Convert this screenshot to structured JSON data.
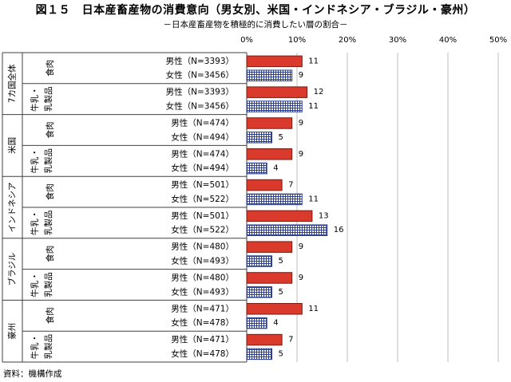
{
  "title": "図１５　日本産畜産物の消費意向（男女別、米国・インドネシア・ブラジル・豪州）",
  "subtitle": "－日本産畜産物を積極的に消費したい層の割合－",
  "source": "資料：機構作成",
  "colors": {
    "male": "#d93a2b",
    "female": "#2c3f8f",
    "grid": "#bfbfbf",
    "frame": "#404040"
  },
  "chart_data": {
    "type": "bar",
    "orientation": "horizontal",
    "xlim": [
      0,
      50
    ],
    "x_ticks": [
      "0%",
      "10%",
      "20%",
      "30%",
      "40%",
      "50%"
    ],
    "grid": true,
    "series": [
      {
        "name": "男性",
        "pattern": "solid-red"
      },
      {
        "name": "女性",
        "pattern": "blue-grid"
      }
    ],
    "groups": [
      {
        "country": "7カ国全体",
        "subgroups": [
          {
            "product": "食肉",
            "rows": [
              {
                "label": "男性（N=3393）",
                "value": 11,
                "series": "男性"
              },
              {
                "label": "女性（N=3456）",
                "value": 9,
                "series": "女性"
              }
            ]
          },
          {
            "product": "牛乳・乳製品",
            "rows": [
              {
                "label": "男性（N=3393）",
                "value": 12,
                "series": "男性"
              },
              {
                "label": "女性（N=3456）",
                "value": 11,
                "series": "女性"
              }
            ]
          }
        ]
      },
      {
        "country": "米国",
        "subgroups": [
          {
            "product": "食肉",
            "rows": [
              {
                "label": "男性（N=474）",
                "value": 9,
                "series": "男性"
              },
              {
                "label": "女性（N=494）",
                "value": 5,
                "series": "女性"
              }
            ]
          },
          {
            "product": "牛乳・乳製品",
            "rows": [
              {
                "label": "男性（N=474）",
                "value": 9,
                "series": "男性"
              },
              {
                "label": "女性（N=494）",
                "value": 4,
                "series": "女性"
              }
            ]
          }
        ]
      },
      {
        "country": "インドネシア",
        "subgroups": [
          {
            "product": "食肉",
            "rows": [
              {
                "label": "男性（N=501）",
                "value": 7,
                "series": "男性"
              },
              {
                "label": "女性（N=522）",
                "value": 11,
                "series": "女性"
              }
            ]
          },
          {
            "product": "牛乳・乳製品",
            "rows": [
              {
                "label": "男性（N=501）",
                "value": 13,
                "series": "男性"
              },
              {
                "label": "女性（N=522）",
                "value": 16,
                "series": "女性"
              }
            ]
          }
        ]
      },
      {
        "country": "ブラジル",
        "subgroups": [
          {
            "product": "食肉",
            "rows": [
              {
                "label": "男性（N=480）",
                "value": 9,
                "series": "男性"
              },
              {
                "label": "女性（N=493）",
                "value": 5,
                "series": "女性"
              }
            ]
          },
          {
            "product": "牛乳・乳製品",
            "rows": [
              {
                "label": "男性（N=480）",
                "value": 9,
                "series": "男性"
              },
              {
                "label": "女性（N=493）",
                "value": 5,
                "series": "女性"
              }
            ]
          }
        ]
      },
      {
        "country": "豪州",
        "subgroups": [
          {
            "product": "食肉",
            "rows": [
              {
                "label": "男性（N=471）",
                "value": 11,
                "series": "男性"
              },
              {
                "label": "女性（N=478）",
                "value": 4,
                "series": "女性"
              }
            ]
          },
          {
            "product": "牛乳・乳製品",
            "rows": [
              {
                "label": "男性（N=471）",
                "value": 7,
                "series": "男性"
              },
              {
                "label": "女性（N=478）",
                "value": 5,
                "series": "女性"
              }
            ]
          }
        ]
      }
    ]
  }
}
